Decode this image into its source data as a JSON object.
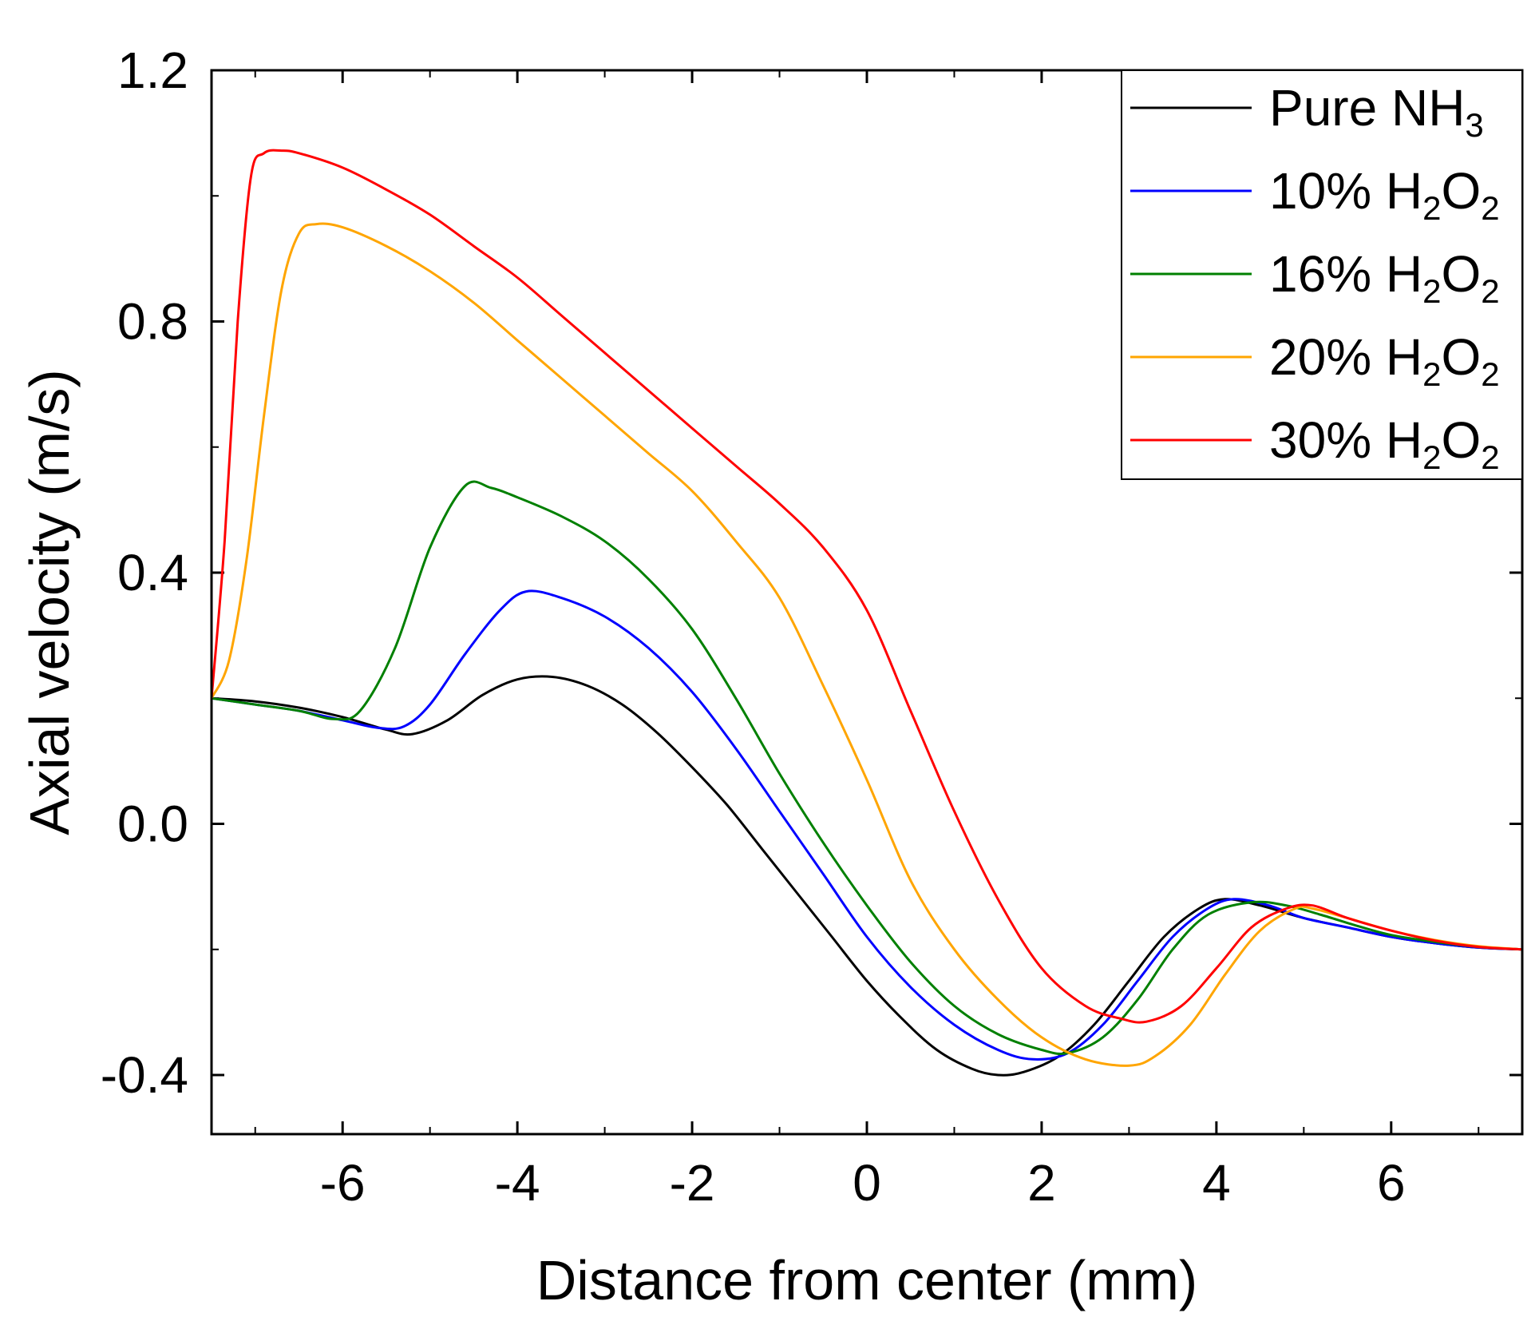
{
  "chart_data": {
    "type": "line",
    "title": "",
    "xlabel": "Distance from center (mm)",
    "ylabel": "Axial velocity (m/s)",
    "xlim": [
      -7.5,
      7.5
    ],
    "ylim": [
      -0.5,
      1.2
    ],
    "xticks": [
      -6,
      -4,
      -2,
      0,
      2,
      4,
      6
    ],
    "xtick_labels": [
      "-6",
      "-4",
      "-2",
      "0",
      "2",
      "4",
      "6"
    ],
    "yticks": [
      -0.4,
      0.0,
      0.4,
      0.8,
      1.2
    ],
    "ytick_labels": [
      "-0.4",
      "0.0",
      "0.4",
      "0.8",
      "1.2"
    ],
    "grid": false,
    "legend_position": "top-right",
    "series": [
      {
        "name": "Pure NH3",
        "legend_main": "Pure NH",
        "legend_sub": "3",
        "legend_tail": "",
        "legend_sub2": "",
        "color": "#000000",
        "x": [
          -7.5,
          -7.0,
          -6.5,
          -6.0,
          -5.5,
          -5.2,
          -4.8,
          -4.4,
          -4.0,
          -3.6,
          -3.2,
          -2.8,
          -2.4,
          -2.0,
          -1.6,
          -1.2,
          -0.8,
          -0.4,
          0.0,
          0.4,
          0.8,
          1.2,
          1.5,
          1.8,
          2.2,
          2.6,
          3.0,
          3.4,
          3.8,
          4.1,
          4.5,
          5.0,
          5.5,
          6.0,
          6.5,
          7.0,
          7.5
        ],
        "y": [
          0.2,
          0.195,
          0.185,
          0.17,
          0.15,
          0.143,
          0.165,
          0.205,
          0.23,
          0.234,
          0.22,
          0.19,
          0.145,
          0.09,
          0.03,
          -0.04,
          -0.11,
          -0.18,
          -0.25,
          -0.31,
          -0.36,
          -0.39,
          -0.4,
          -0.395,
          -0.37,
          -0.32,
          -0.25,
          -0.18,
          -0.135,
          -0.12,
          -0.13,
          -0.15,
          -0.165,
          -0.18,
          -0.19,
          -0.197,
          -0.2
        ]
      },
      {
        "name": "10% H2O2",
        "legend_main": "10% H",
        "legend_sub": "2",
        "legend_tail": "O",
        "legend_sub2": "2",
        "color": "#0000ff",
        "x": [
          -7.5,
          -7.0,
          -6.5,
          -6.0,
          -5.6,
          -5.3,
          -5.0,
          -4.6,
          -4.2,
          -3.9,
          -3.5,
          -3.0,
          -2.5,
          -2.0,
          -1.5,
          -1.0,
          -0.5,
          0.0,
          0.5,
          1.0,
          1.5,
          1.9,
          2.3,
          2.7,
          3.1,
          3.5,
          3.9,
          4.2,
          4.6,
          5.0,
          5.5,
          6.0,
          6.5,
          7.0,
          7.5
        ],
        "y": [
          0.2,
          0.19,
          0.18,
          0.165,
          0.153,
          0.155,
          0.19,
          0.27,
          0.34,
          0.37,
          0.36,
          0.33,
          0.28,
          0.21,
          0.12,
          0.02,
          -0.08,
          -0.18,
          -0.26,
          -0.32,
          -0.36,
          -0.375,
          -0.365,
          -0.32,
          -0.25,
          -0.18,
          -0.135,
          -0.12,
          -0.13,
          -0.15,
          -0.165,
          -0.18,
          -0.19,
          -0.197,
          -0.2
        ]
      },
      {
        "name": "16% H2O2",
        "legend_main": "16% H",
        "legend_sub": "2",
        "legend_tail": "O",
        "legend_sub2": "2",
        "color": "#008000",
        "x": [
          -7.5,
          -7.0,
          -6.5,
          -6.1,
          -5.8,
          -5.4,
          -5.0,
          -4.6,
          -4.3,
          -4.0,
          -3.5,
          -3.0,
          -2.5,
          -2.0,
          -1.5,
          -1.0,
          -0.5,
          0.0,
          0.5,
          1.0,
          1.5,
          2.0,
          2.3,
          2.7,
          3.1,
          3.5,
          3.9,
          4.4,
          4.8,
          5.2,
          5.6,
          6.0,
          6.5,
          7.0,
          7.5
        ],
        "y": [
          0.2,
          0.19,
          0.18,
          0.167,
          0.18,
          0.28,
          0.44,
          0.538,
          0.535,
          0.52,
          0.49,
          0.45,
          0.39,
          0.31,
          0.2,
          0.08,
          -0.03,
          -0.13,
          -0.22,
          -0.29,
          -0.335,
          -0.36,
          -0.365,
          -0.34,
          -0.28,
          -0.2,
          -0.145,
          -0.125,
          -0.13,
          -0.145,
          -0.162,
          -0.177,
          -0.188,
          -0.196,
          -0.2
        ]
      },
      {
        "name": "20% H2O2",
        "legend_main": "20% H",
        "legend_sub": "2",
        "legend_tail": "O",
        "legend_sub2": "2",
        "color": "#ffa500",
        "x": [
          -7.5,
          -7.3,
          -7.1,
          -6.9,
          -6.7,
          -6.5,
          -6.3,
          -6.0,
          -5.5,
          -5.0,
          -4.5,
          -4.0,
          -3.5,
          -3.0,
          -2.5,
          -2.0,
          -1.5,
          -1.0,
          -0.5,
          0.0,
          0.5,
          1.0,
          1.5,
          2.0,
          2.5,
          3.0,
          3.3,
          3.7,
          4.1,
          4.5,
          4.9,
          5.1,
          5.5,
          6.0,
          6.5,
          7.0,
          7.5
        ],
        "y": [
          0.2,
          0.26,
          0.42,
          0.65,
          0.85,
          0.94,
          0.955,
          0.95,
          0.92,
          0.88,
          0.83,
          0.77,
          0.71,
          0.65,
          0.59,
          0.53,
          0.45,
          0.36,
          0.22,
          0.07,
          -0.09,
          -0.2,
          -0.28,
          -0.34,
          -0.375,
          -0.385,
          -0.37,
          -0.32,
          -0.24,
          -0.17,
          -0.135,
          -0.135,
          -0.15,
          -0.17,
          -0.185,
          -0.195,
          -0.2
        ]
      },
      {
        "name": "30% H2O2",
        "legend_main": "30% H",
        "legend_sub": "2",
        "legend_tail": "O",
        "legend_sub2": "2",
        "color": "#ff0000",
        "x": [
          -7.5,
          -7.35,
          -7.2,
          -7.05,
          -6.9,
          -6.7,
          -6.5,
          -6.0,
          -5.5,
          -5.0,
          -4.5,
          -4.0,
          -3.5,
          -3.0,
          -2.5,
          -2.0,
          -1.5,
          -1.0,
          -0.5,
          0.0,
          0.5,
          1.0,
          1.5,
          2.0,
          2.5,
          2.9,
          3.2,
          3.6,
          4.0,
          4.4,
          4.8,
          5.1,
          5.5,
          6.0,
          6.5,
          7.0,
          7.5
        ],
        "y": [
          0.2,
          0.45,
          0.8,
          1.03,
          1.068,
          1.072,
          1.068,
          1.045,
          1.01,
          0.97,
          0.92,
          0.87,
          0.81,
          0.75,
          0.69,
          0.63,
          0.57,
          0.51,
          0.44,
          0.34,
          0.18,
          0.02,
          -0.12,
          -0.23,
          -0.29,
          -0.31,
          -0.315,
          -0.29,
          -0.23,
          -0.165,
          -0.135,
          -0.13,
          -0.15,
          -0.17,
          -0.186,
          -0.196,
          -0.2
        ]
      }
    ]
  }
}
